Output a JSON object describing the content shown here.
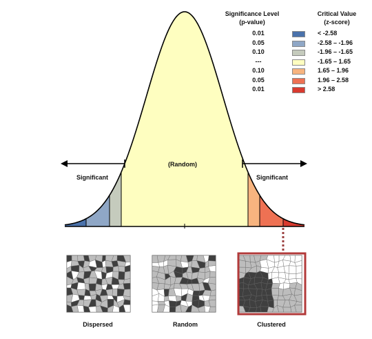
{
  "legend": {
    "p_header": [
      "Significance Level",
      "(p-value)"
    ],
    "z_header": [
      "Critical Value",
      "(z-score)"
    ],
    "rows": [
      {
        "p": "0.01",
        "z": "< -2.58",
        "color": "#4a72ab"
      },
      {
        "p": "0.05",
        "z": "-2.58 – -1.96",
        "color": "#8fa7c6"
      },
      {
        "p": "0.10",
        "z": "-1.96 – -1.65",
        "color": "#c5cbbd"
      },
      {
        "p": "---",
        "z": "-1.65 – 1.65",
        "color": "#fefec0"
      },
      {
        "p": "0.10",
        "z": "1.65 – 1.96",
        "color": "#f7b47f"
      },
      {
        "p": "0.05",
        "z": "1.96 – 2.58",
        "color": "#ee7153"
      },
      {
        "p": "0.01",
        "z": "> 2.58",
        "color": "#d93a2f"
      }
    ]
  },
  "curve": {
    "random_label": "(Random)",
    "left_label": "Significant",
    "right_label": "Significant"
  },
  "maps": {
    "dispersed": "Dispersed",
    "random": "Random",
    "clustered": "Clustered"
  }
}
